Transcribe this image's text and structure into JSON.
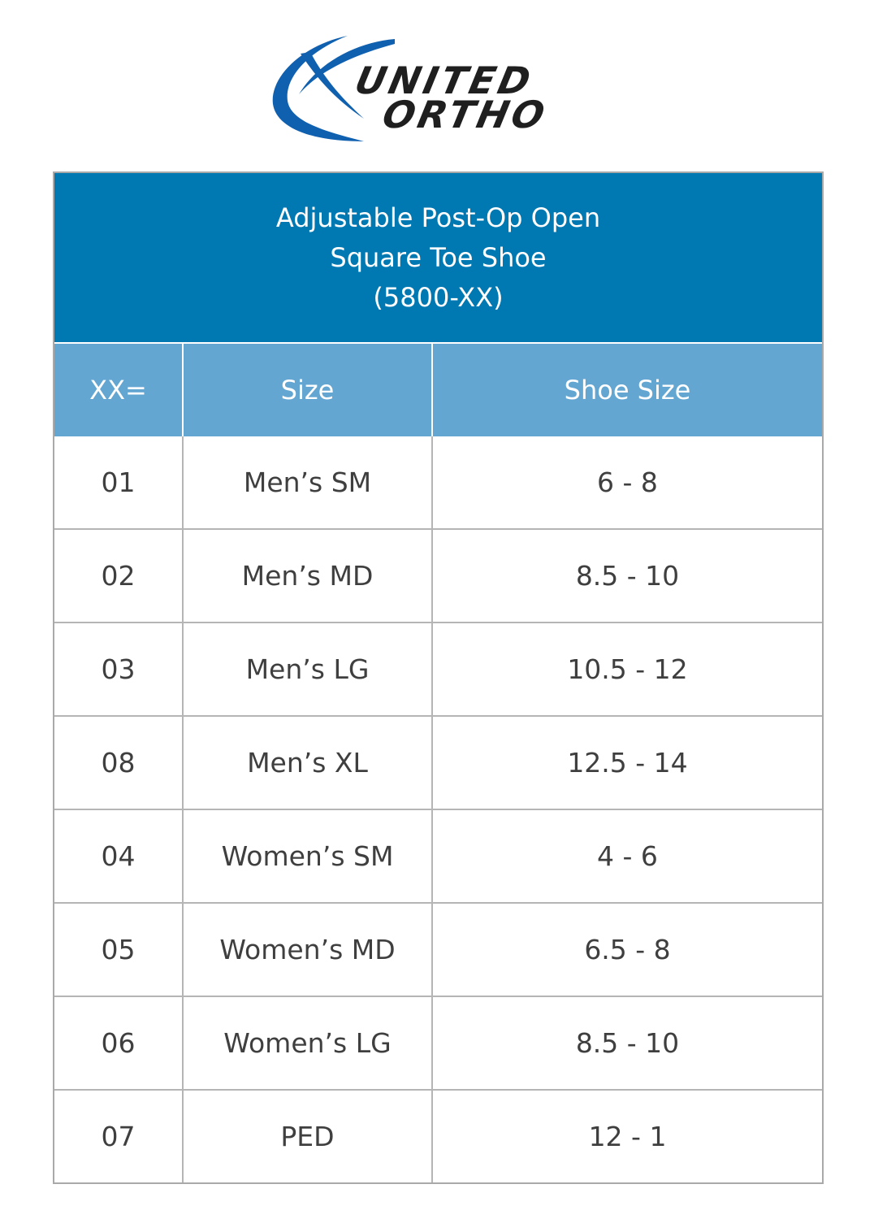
{
  "logo": {
    "line1": "UNITED",
    "line2": "ORTHO",
    "colors": {
      "swoosh": "#1060b0",
      "text": "#1f1f1f"
    }
  },
  "title": {
    "line1": "Adjustable Post-Op Open",
    "line2": "Square Toe Shoe",
    "line3": "(5800-XX)"
  },
  "columns": [
    "XX=",
    "Size",
    "Shoe Size"
  ],
  "rows": [
    {
      "code": "01",
      "size": "Men’s SM",
      "shoe": "6 - 8"
    },
    {
      "code": "02",
      "size": "Men’s MD",
      "shoe": "8.5 - 10"
    },
    {
      "code": "03",
      "size": "Men’s LG",
      "shoe": "10.5 - 12"
    },
    {
      "code": "08",
      "size": "Men’s XL",
      "shoe": "12.5 - 14"
    },
    {
      "code": "04",
      "size": "Women’s SM",
      "shoe": "4 - 6"
    },
    {
      "code": "05",
      "size": "Women’s MD",
      "shoe": "6.5 - 8"
    },
    {
      "code": "06",
      "size": "Women’s LG",
      "shoe": "8.5 - 10"
    },
    {
      "code": "07",
      "size": "PED",
      "shoe": "12 - 1"
    }
  ],
  "colors": {
    "title_band": "#0078b2",
    "header_band": "#64a6d2",
    "cell_text": "#3f3f3f",
    "grid": "#b5b5b5"
  }
}
